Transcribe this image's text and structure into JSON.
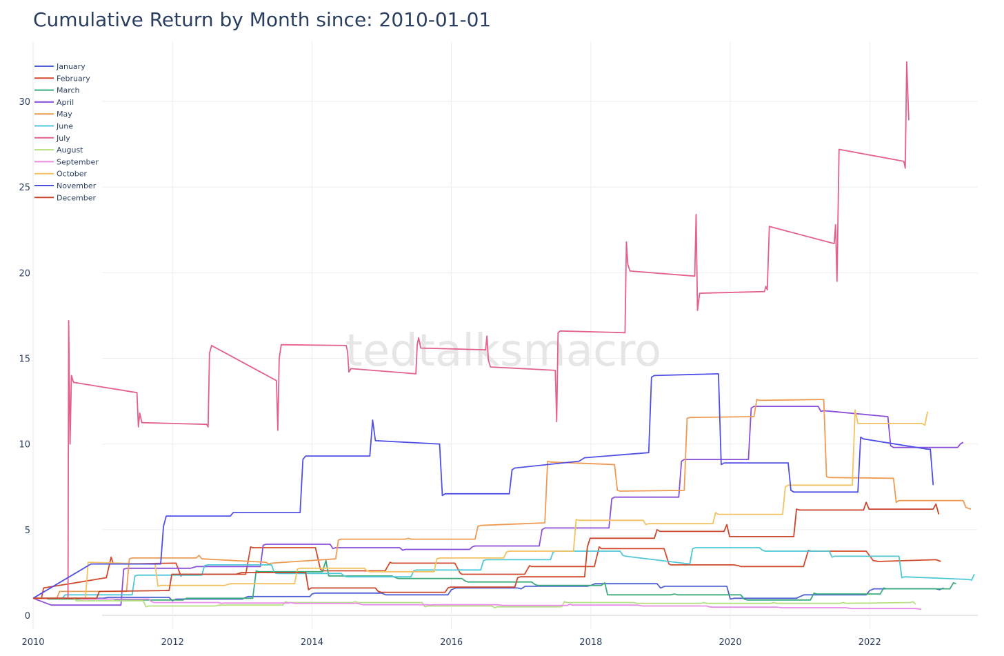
{
  "chart_data": {
    "type": "line",
    "title": "Cumulative Return by Month since: 2010-01-01",
    "watermark": "tedtalksmacro",
    "xlim": [
      2010.0,
      2023.55
    ],
    "ylim": [
      -0.8,
      33.5
    ],
    "x_ticks": [
      2010,
      2012,
      2014,
      2016,
      2018,
      2020,
      2022
    ],
    "x_tick_labels": [
      "2010",
      "2012",
      "2014",
      "2016",
      "2018",
      "2020",
      "2022"
    ],
    "y_ticks": [
      0,
      5,
      10,
      15,
      20,
      25,
      30
    ],
    "y_tick_labels": [
      "0",
      "5",
      "10",
      "15",
      "20",
      "25",
      "30"
    ],
    "grid": true,
    "legend_position": "top-left",
    "series": [
      {
        "name": "January",
        "color": "#4f5fd6",
        "x": [
          2010.0,
          2010.02,
          2011.0,
          2011.08,
          2011.95,
          2012.0,
          2012.05,
          2013.0,
          2013.08,
          2013.97,
          2014.0,
          2014.05,
          2015.0,
          2015.06,
          2015.95,
          2016.0,
          2016.06,
          2016.95,
          2017.0,
          2017.06,
          2017.95,
          2018.0,
          2018.06,
          2018.95,
          2019.0,
          2019.06,
          2019.95,
          2020.0,
          2020.06,
          2020.95,
          2021.0,
          2021.06,
          2021.95,
          2022.0,
          2022.06,
          2022.95,
          2023.0,
          2023.06
        ],
        "y": [
          1.0,
          1.0,
          1.0,
          1.05,
          1.05,
          0.85,
          0.95,
          0.95,
          1.1,
          1.1,
          1.25,
          1.3,
          1.3,
          1.2,
          1.2,
          1.5,
          1.6,
          1.6,
          1.55,
          1.7,
          1.7,
          1.75,
          1.85,
          1.85,
          1.6,
          1.7,
          1.7,
          0.95,
          1.0,
          1.0,
          1.1,
          1.2,
          1.2,
          1.45,
          1.55,
          1.55,
          1.5,
          1.6
        ]
      },
      {
        "name": "February",
        "color": "#d2492b",
        "x": [
          2010.0,
          2010.12,
          2010.15,
          2011.05,
          2011.12,
          2011.15,
          2012.05,
          2012.12,
          2012.15,
          2013.05,
          2013.12,
          2013.15,
          2014.05,
          2014.12,
          2014.15,
          2015.05,
          2015.12,
          2015.15,
          2016.05,
          2016.12,
          2016.15,
          2017.05,
          2017.12,
          2017.15,
          2018.05,
          2018.12,
          2018.15,
          2019.05,
          2019.12,
          2019.15,
          2020.05,
          2020.12,
          2020.15,
          2021.05,
          2021.12,
          2021.15,
          2021.95,
          2022.05,
          2022.12,
          2022.15,
          2022.95,
          2023.02
        ],
        "y": [
          1.0,
          1.0,
          1.6,
          2.2,
          3.4,
          3.0,
          3.05,
          2.3,
          2.4,
          2.4,
          4.0,
          3.95,
          3.95,
          2.7,
          2.6,
          2.6,
          3.1,
          3.05,
          3.05,
          2.5,
          2.4,
          2.4,
          2.9,
          2.85,
          2.85,
          4.0,
          3.9,
          3.9,
          3.0,
          2.95,
          2.95,
          2.9,
          2.85,
          2.85,
          3.8,
          3.75,
          3.75,
          3.2,
          3.15,
          3.15,
          3.25,
          3.15
        ]
      },
      {
        "name": "March",
        "color": "#3aab7a",
        "x": [
          2010.0,
          2010.18,
          2010.22,
          2011.15,
          2011.2,
          2011.24,
          2012.15,
          2012.2,
          2012.24,
          2013.15,
          2013.2,
          2013.24,
          2014.15,
          2014.2,
          2014.24,
          2015.15,
          2015.2,
          2015.24,
          2016.15,
          2016.2,
          2016.24,
          2017.15,
          2017.2,
          2017.24,
          2018.15,
          2018.2,
          2018.24,
          2019.15,
          2019.2,
          2019.24,
          2020.15,
          2020.2,
          2020.24,
          2021.15,
          2021.2,
          2021.24,
          2022.15,
          2022.2,
          2022.24,
          2023.15,
          2023.2,
          2023.24
        ],
        "y": [
          1.0,
          1.0,
          0.95,
          0.95,
          0.9,
          0.9,
          0.9,
          1.0,
          1.0,
          1.0,
          2.6,
          2.55,
          2.55,
          3.2,
          2.3,
          2.3,
          2.2,
          2.15,
          2.15,
          2.0,
          1.95,
          1.95,
          1.8,
          1.75,
          1.75,
          1.9,
          1.2,
          1.2,
          1.25,
          1.2,
          1.2,
          0.95,
          0.9,
          0.9,
          1.3,
          1.25,
          1.25,
          1.6,
          1.55,
          1.55,
          1.9,
          1.85
        ]
      },
      {
        "name": "April",
        "color": "#8a4fd9",
        "x": [
          2010.0,
          2010.26,
          2010.3,
          2011.26,
          2011.3,
          2011.34,
          2012.26,
          2012.3,
          2012.34,
          2013.26,
          2013.3,
          2013.34,
          2014.26,
          2014.3,
          2014.34,
          2015.26,
          2015.3,
          2015.34,
          2016.26,
          2016.3,
          2016.34,
          2017.26,
          2017.3,
          2017.34,
          2018.26,
          2018.3,
          2018.34,
          2019.26,
          2019.3,
          2019.34,
          2020.26,
          2020.3,
          2020.34,
          2021.26,
          2021.3,
          2021.34,
          2022.26,
          2022.3,
          2022.34,
          2023.26,
          2023.3,
          2023.34
        ],
        "y": [
          1.0,
          0.6,
          0.6,
          0.6,
          2.7,
          2.75,
          2.75,
          2.8,
          2.85,
          2.85,
          4.1,
          4.15,
          4.15,
          3.9,
          3.95,
          3.95,
          3.8,
          3.85,
          3.85,
          4.0,
          4.05,
          4.05,
          5.0,
          5.1,
          5.1,
          6.8,
          6.9,
          6.9,
          9.0,
          9.1,
          9.1,
          12.1,
          12.2,
          12.2,
          11.9,
          11.95,
          11.6,
          9.9,
          9.8,
          9.8,
          10.0,
          10.1
        ]
      },
      {
        "name": "May",
        "color": "#ef9a52",
        "x": [
          2010.0,
          2010.34,
          2010.38,
          2011.34,
          2011.38,
          2011.42,
          2012.34,
          2012.38,
          2012.42,
          2013.34,
          2013.38,
          2013.42,
          2014.34,
          2014.38,
          2014.42,
          2015.34,
          2015.38,
          2015.42,
          2016.34,
          2016.38,
          2016.42,
          2017.34,
          2017.38,
          2017.42,
          2018.34,
          2018.38,
          2018.42,
          2019.34,
          2019.38,
          2019.42,
          2020.34,
          2020.38,
          2020.42,
          2021.34,
          2021.38,
          2021.42,
          2022.34,
          2022.38,
          2022.42,
          2023.34,
          2023.38,
          2023.45
        ],
        "y": [
          1.0,
          1.0,
          1.4,
          1.4,
          3.3,
          3.35,
          3.35,
          3.5,
          3.3,
          3.1,
          3.0,
          3.05,
          3.3,
          4.4,
          4.45,
          4.45,
          4.5,
          4.45,
          4.45,
          5.2,
          5.25,
          5.4,
          9.0,
          8.95,
          8.8,
          7.3,
          7.25,
          7.3,
          11.5,
          11.55,
          11.6,
          12.6,
          12.55,
          12.6,
          8.1,
          8.05,
          8.0,
          6.6,
          6.7,
          6.7,
          6.3,
          6.2
        ]
      },
      {
        "name": "June",
        "color": "#4fc8d6",
        "x": [
          2010.0,
          2010.42,
          2010.46,
          2011.42,
          2011.46,
          2011.5,
          2012.42,
          2012.46,
          2012.5,
          2013.42,
          2013.46,
          2013.5,
          2014.42,
          2014.46,
          2014.5,
          2015.42,
          2015.46,
          2015.5,
          2016.42,
          2016.46,
          2016.5,
          2017.42,
          2017.46,
          2017.5,
          2018.42,
          2018.46,
          2018.5,
          2019.42,
          2019.46,
          2019.5,
          2020.42,
          2020.46,
          2020.5,
          2021.42,
          2021.46,
          2021.5,
          2022.42,
          2022.46,
          2022.5,
          2023.42,
          2023.46,
          2023.5
        ],
        "y": [
          1.0,
          1.0,
          1.2,
          1.2,
          2.3,
          2.35,
          2.35,
          2.9,
          2.95,
          2.95,
          2.5,
          2.45,
          2.45,
          2.3,
          2.25,
          2.25,
          2.6,
          2.65,
          2.65,
          3.2,
          3.25,
          3.25,
          3.7,
          3.75,
          3.75,
          3.5,
          3.45,
          3.0,
          3.9,
          3.95,
          3.95,
          3.8,
          3.75,
          3.75,
          3.4,
          3.45,
          3.45,
          2.2,
          2.25,
          2.1,
          2.05,
          2.4
        ]
      },
      {
        "name": "July",
        "color": "#e3608a",
        "x": [
          2010.0,
          2010.5,
          2010.51,
          2010.53,
          2010.55,
          2010.58,
          2011.49,
          2011.51,
          2011.53,
          2011.56,
          2012.49,
          2012.51,
          2012.53,
          2012.56,
          2013.49,
          2013.51,
          2013.53,
          2013.56,
          2014.49,
          2014.51,
          2014.53,
          2014.56,
          2015.49,
          2015.51,
          2015.53,
          2015.56,
          2016.49,
          2016.51,
          2016.53,
          2016.56,
          2017.49,
          2017.51,
          2017.53,
          2017.56,
          2018.49,
          2018.51,
          2018.53,
          2018.56,
          2019.49,
          2019.51,
          2019.53,
          2019.56,
          2020.49,
          2020.51,
          2020.53,
          2020.56,
          2021.49,
          2021.51,
          2021.53,
          2021.56,
          2022.49,
          2022.51,
          2022.53,
          2022.56
        ],
        "y": [
          1.0,
          1.0,
          17.2,
          10.0,
          14.0,
          13.6,
          13.0,
          11.0,
          11.8,
          11.25,
          11.15,
          11.0,
          15.3,
          15.75,
          13.7,
          10.8,
          15.0,
          15.8,
          15.75,
          15.4,
          14.2,
          14.4,
          14.1,
          15.8,
          16.2,
          15.6,
          15.5,
          16.3,
          14.9,
          14.5,
          14.3,
          11.3,
          16.5,
          16.6,
          16.5,
          21.8,
          20.5,
          20.1,
          19.8,
          23.4,
          17.8,
          18.8,
          18.9,
          19.2,
          19.0,
          22.7,
          21.7,
          22.8,
          19.5,
          27.2,
          26.5,
          26.1,
          32.3,
          28.9
        ]
      },
      {
        "name": "August",
        "color": "#b6e080",
        "x": [
          2010.0,
          2010.58,
          2010.62,
          2011.58,
          2011.62,
          2011.66,
          2012.58,
          2012.62,
          2012.66,
          2013.58,
          2013.62,
          2013.66,
          2014.58,
          2014.62,
          2014.66,
          2015.58,
          2015.62,
          2015.66,
          2016.58,
          2016.62,
          2016.66,
          2017.58,
          2017.62,
          2017.66,
          2018.58,
          2018.62,
          2018.66,
          2019.58,
          2019.62,
          2019.66,
          2020.58,
          2020.62,
          2020.66,
          2021.58,
          2021.62,
          2021.66,
          2022.58,
          2022.62,
          2022.66
        ],
        "y": [
          1.0,
          1.0,
          0.85,
          0.85,
          0.5,
          0.55,
          0.55,
          0.55,
          0.6,
          0.6,
          0.8,
          0.75,
          0.75,
          0.8,
          0.75,
          0.75,
          0.5,
          0.55,
          0.55,
          0.45,
          0.5,
          0.5,
          0.8,
          0.75,
          0.75,
          0.75,
          0.7,
          0.7,
          0.75,
          0.7,
          0.7,
          0.75,
          0.7,
          0.7,
          0.75,
          0.7,
          0.75,
          0.8,
          0.65
        ]
      },
      {
        "name": "September",
        "color": "#e88ce8",
        "x": [
          2010.0,
          2010.66,
          2010.7,
          2011.66,
          2011.7,
          2011.74,
          2012.66,
          2012.7,
          2012.74,
          2013.66,
          2013.7,
          2013.74,
          2014.66,
          2014.7,
          2014.74,
          2015.66,
          2015.7,
          2015.74,
          2016.66,
          2016.7,
          2016.74,
          2017.66,
          2017.7,
          2017.74,
          2018.66,
          2018.7,
          2018.74,
          2019.66,
          2019.7,
          2019.74,
          2020.66,
          2020.7,
          2020.74,
          2021.66,
          2021.7,
          2021.74,
          2022.66,
          2022.7,
          2022.74
        ],
        "y": [
          1.0,
          1.0,
          0.95,
          0.95,
          0.8,
          0.75,
          0.75,
          0.7,
          0.72,
          0.72,
          0.75,
          0.7,
          0.7,
          0.65,
          0.62,
          0.62,
          0.6,
          0.62,
          0.62,
          0.6,
          0.58,
          0.58,
          0.65,
          0.6,
          0.6,
          0.58,
          0.55,
          0.55,
          0.5,
          0.48,
          0.48,
          0.47,
          0.45,
          0.45,
          0.42,
          0.4,
          0.4,
          0.38,
          0.35
        ]
      },
      {
        "name": "October",
        "color": "#f2c160",
        "x": [
          2010.0,
          2010.75,
          2010.79,
          2011.75,
          2011.79,
          2011.83,
          2012.75,
          2012.79,
          2012.83,
          2013.75,
          2013.79,
          2013.83,
          2014.75,
          2014.79,
          2014.83,
          2015.75,
          2015.79,
          2015.83,
          2016.75,
          2016.79,
          2016.83,
          2017.75,
          2017.79,
          2017.83,
          2018.75,
          2018.79,
          2018.83,
          2019.75,
          2019.79,
          2019.83,
          2020.75,
          2020.79,
          2020.83,
          2021.75,
          2021.79,
          2021.83,
          2022.75,
          2022.79,
          2022.83
        ],
        "y": [
          1.0,
          1.0,
          3.1,
          3.0,
          1.7,
          1.75,
          1.75,
          1.8,
          1.85,
          1.85,
          2.7,
          2.75,
          2.75,
          2.6,
          2.55,
          2.55,
          3.3,
          3.35,
          3.35,
          3.7,
          3.75,
          3.75,
          5.6,
          5.55,
          5.55,
          5.3,
          5.35,
          5.35,
          6.0,
          5.9,
          5.9,
          7.5,
          7.6,
          7.6,
          12.0,
          11.2,
          11.2,
          11.1,
          11.9
        ]
      },
      {
        "name": "November",
        "color": "#4f4fe8",
        "x": [
          2010.0,
          2010.83,
          2010.87,
          2011.83,
          2011.87,
          2011.91,
          2012.83,
          2012.87,
          2012.91,
          2013.83,
          2013.87,
          2013.91,
          2014.83,
          2014.87,
          2014.91,
          2015.83,
          2015.87,
          2015.91,
          2016.83,
          2016.87,
          2016.91,
          2017.83,
          2017.87,
          2017.91,
          2018.83,
          2018.87,
          2018.91,
          2019.83,
          2019.87,
          2019.91,
          2020.83,
          2020.87,
          2020.91,
          2021.83,
          2021.87,
          2021.91,
          2022.83,
          2022.87,
          2022.91
        ],
        "y": [
          1.0,
          3.0,
          3.0,
          3.0,
          5.2,
          5.8,
          5.8,
          6.0,
          6.0,
          6.0,
          9.1,
          9.3,
          9.3,
          11.4,
          10.2,
          10.0,
          7.0,
          7.1,
          7.1,
          8.5,
          8.6,
          9.0,
          9.1,
          9.2,
          9.5,
          13.9,
          14.0,
          14.1,
          8.8,
          8.9,
          8.9,
          7.3,
          7.2,
          7.2,
          10.4,
          10.3,
          9.7,
          9.7,
          7.6
        ]
      },
      {
        "name": "December",
        "color": "#c9442a",
        "x": [
          2010.0,
          2010.91,
          2010.95,
          2011.91,
          2011.95,
          2011.99,
          2012.91,
          2012.95,
          2012.99,
          2013.91,
          2013.95,
          2013.99,
          2014.91,
          2014.95,
          2014.99,
          2015.91,
          2015.95,
          2015.99,
          2016.91,
          2016.95,
          2016.99,
          2017.91,
          2017.95,
          2017.99,
          2018.91,
          2018.95,
          2018.99,
          2019.91,
          2019.95,
          2019.99,
          2020.91,
          2020.95,
          2020.99,
          2021.91,
          2021.95,
          2021.99,
          2022.91,
          2022.95,
          2022.99
        ],
        "y": [
          1.0,
          1.0,
          1.4,
          1.45,
          1.45,
          2.4,
          2.4,
          2.45,
          2.5,
          2.5,
          1.5,
          1.6,
          1.6,
          1.4,
          1.35,
          1.35,
          1.6,
          1.65,
          1.65,
          2.2,
          2.25,
          2.25,
          4.0,
          4.5,
          4.5,
          5.0,
          4.9,
          4.9,
          5.3,
          4.6,
          4.6,
          6.2,
          6.15,
          6.15,
          6.6,
          6.2,
          6.2,
          6.5,
          5.9
        ]
      }
    ]
  }
}
